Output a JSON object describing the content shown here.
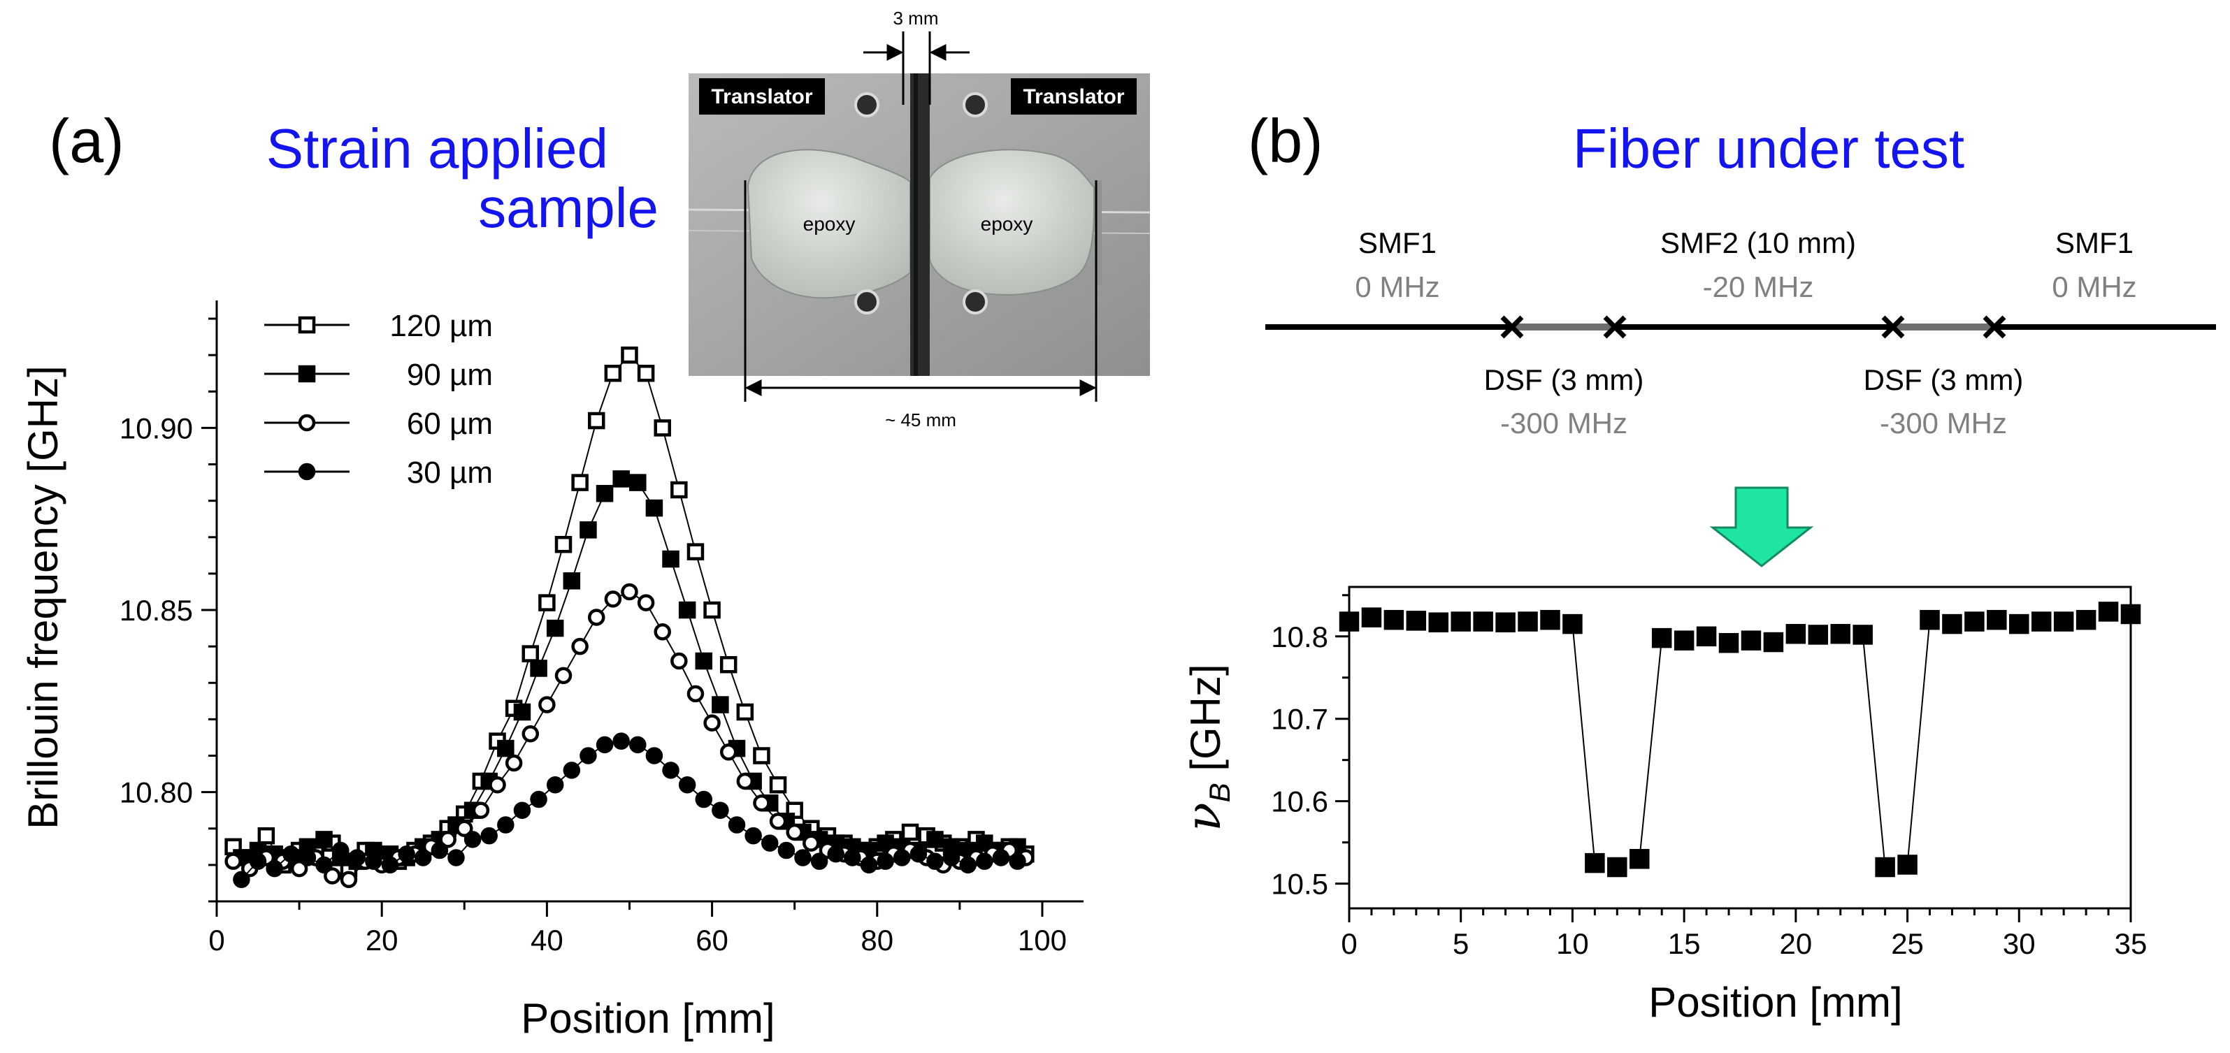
{
  "panels": {
    "a": {
      "letter": "(a)",
      "title_line1": "Strain applied",
      "title_line2": "sample",
      "photo": {
        "translator_left": "Translator",
        "translator_right": "Translator",
        "epoxy_left": "epoxy",
        "epoxy_right": "epoxy",
        "gap_label": "3 mm",
        "span_label": "~ 45 mm"
      }
    },
    "b": {
      "letter": "(b)",
      "title": "Fiber under test",
      "segments": [
        {
          "name": "SMF1",
          "shift": "0 MHz"
        },
        {
          "name": "DSF (3 mm)",
          "shift": "-300 MHz"
        },
        {
          "name": "SMF2 (10 mm)",
          "shift": "-20 MHz"
        },
        {
          "name": "DSF (3 mm)",
          "shift": "-300 MHz"
        },
        {
          "name": "SMF1",
          "shift": "0 MHz"
        }
      ]
    }
  },
  "colors": {
    "title_blue": "#1414f0",
    "arrow_fill": "#1ee6a0",
    "shift_gray": "#808080",
    "fiber_black": "#000000",
    "dsf_gray": "#6e6e6e"
  },
  "chart_data": [
    {
      "type": "scatter",
      "title": "",
      "xlabel": "Position [mm]",
      "ylabel": "Brillouin frequency [GHz]",
      "xlim": [
        0,
        105
      ],
      "ylim": [
        10.77,
        10.935
      ],
      "xticks": [
        "0",
        "20",
        "40",
        "60",
        "80",
        "100"
      ],
      "yticks": [
        "10.80",
        "10.85",
        "10.90"
      ],
      "series": [
        {
          "name": "120 µm",
          "marker": "open-square",
          "peak": 10.92,
          "center": 50,
          "width": 7.5,
          "x": [
            2,
            4,
            6,
            8,
            10,
            12,
            14,
            16,
            18,
            20,
            22,
            24,
            26,
            28,
            30,
            32,
            34,
            36,
            38,
            40,
            42,
            44,
            46,
            48,
            50,
            52,
            54,
            56,
            58,
            60,
            62,
            64,
            66,
            68,
            70,
            72,
            74,
            76,
            78,
            80,
            82,
            84,
            86,
            88,
            90,
            92,
            94,
            96,
            98
          ],
          "y": [
            10.785,
            10.782,
            10.788,
            10.78,
            10.784,
            10.783,
            10.786,
            10.779,
            10.784,
            10.782,
            10.781,
            10.784,
            10.786,
            10.79,
            10.794,
            10.803,
            10.814,
            10.823,
            10.838,
            10.852,
            10.868,
            10.885,
            10.902,
            10.915,
            10.92,
            10.915,
            10.9,
            10.883,
            10.866,
            10.85,
            10.835,
            10.822,
            10.81,
            10.802,
            10.795,
            10.79,
            10.788,
            10.786,
            10.784,
            10.785,
            10.787,
            10.789,
            10.788,
            10.786,
            10.785,
            10.787,
            10.784,
            10.785,
            10.783
          ]
        },
        {
          "name": "90 µm",
          "marker": "filled-square",
          "peak": 10.886,
          "center": 50,
          "width": 7.5,
          "x": [
            3,
            5,
            7,
            9,
            11,
            13,
            15,
            17,
            19,
            21,
            23,
            25,
            27,
            29,
            31,
            33,
            35,
            37,
            39,
            41,
            43,
            45,
            47,
            49,
            51,
            53,
            55,
            57,
            59,
            61,
            63,
            65,
            67,
            69,
            71,
            73,
            75,
            77,
            79,
            81,
            83,
            85,
            87,
            89,
            91,
            93,
            95,
            97
          ],
          "y": [
            10.782,
            10.784,
            10.783,
            10.782,
            10.785,
            10.787,
            10.782,
            10.781,
            10.784,
            10.783,
            10.782,
            10.785,
            10.787,
            10.791,
            10.795,
            10.803,
            10.812,
            10.822,
            10.834,
            10.845,
            10.858,
            10.872,
            10.882,
            10.886,
            10.885,
            10.878,
            10.864,
            10.85,
            10.836,
            10.824,
            10.812,
            10.803,
            10.797,
            10.792,
            10.789,
            10.787,
            10.786,
            10.785,
            10.784,
            10.786,
            10.785,
            10.784,
            10.787,
            10.785,
            10.784,
            10.786,
            10.784,
            10.785
          ]
        },
        {
          "name": "60 µm",
          "marker": "open-circle",
          "peak": 10.855,
          "center": 50,
          "width": 7.5,
          "x": [
            2,
            4,
            6,
            8,
            10,
            12,
            14,
            16,
            18,
            20,
            22,
            24,
            26,
            28,
            30,
            32,
            34,
            36,
            38,
            40,
            42,
            44,
            46,
            48,
            50,
            52,
            54,
            56,
            58,
            60,
            62,
            64,
            66,
            68,
            70,
            72,
            74,
            76,
            78,
            80,
            82,
            84,
            86,
            88,
            90,
            92,
            94,
            96,
            98
          ],
          "y": [
            10.781,
            10.779,
            10.782,
            10.781,
            10.779,
            10.782,
            10.777,
            10.776,
            10.781,
            10.78,
            10.782,
            10.783,
            10.785,
            10.787,
            10.79,
            10.795,
            10.802,
            10.808,
            10.816,
            10.824,
            10.832,
            10.84,
            10.848,
            10.853,
            10.855,
            10.852,
            10.844,
            10.836,
            10.827,
            10.819,
            10.811,
            10.803,
            10.797,
            10.792,
            10.789,
            10.786,
            10.784,
            10.783,
            10.782,
            10.781,
            10.783,
            10.784,
            10.782,
            10.78,
            10.781,
            10.782,
            10.783,
            10.784,
            10.782
          ]
        },
        {
          "name": "30 µm",
          "marker": "filled-circle",
          "peak": 10.814,
          "center": 50,
          "width": 7.5,
          "x": [
            3,
            5,
            7,
            9,
            11,
            13,
            15,
            17,
            19,
            21,
            23,
            25,
            27,
            29,
            31,
            33,
            35,
            37,
            39,
            41,
            43,
            45,
            47,
            49,
            51,
            53,
            55,
            57,
            59,
            61,
            63,
            65,
            67,
            69,
            71,
            73,
            75,
            77,
            79,
            81,
            83,
            85,
            87,
            89,
            91,
            93,
            95,
            97
          ],
          "y": [
            10.776,
            10.781,
            10.779,
            10.783,
            10.782,
            10.78,
            10.784,
            10.782,
            10.781,
            10.78,
            10.783,
            10.782,
            10.784,
            10.782,
            10.787,
            10.788,
            10.791,
            10.795,
            10.798,
            10.802,
            10.806,
            10.81,
            10.813,
            10.814,
            10.813,
            10.81,
            10.806,
            10.802,
            10.798,
            10.795,
            10.791,
            10.788,
            10.786,
            10.784,
            10.782,
            10.781,
            10.783,
            10.782,
            10.78,
            10.781,
            10.782,
            10.783,
            10.781,
            10.782,
            10.78,
            10.781,
            10.782,
            10.781
          ]
        }
      ]
    },
    {
      "type": "scatter",
      "title": "",
      "xlabel": "Position [mm]",
      "ylabel": "ν_B [GHz]",
      "ylabel_symbol": "ν",
      "ylabel_subscript": "B",
      "ylabel_unit": " [GHz]",
      "xlim": [
        0,
        35
      ],
      "ylim": [
        10.47,
        10.86
      ],
      "xticks": [
        "0",
        "5",
        "10",
        "15",
        "20",
        "25",
        "30",
        "35"
      ],
      "yticks": [
        "10.5",
        "10.6",
        "10.7",
        "10.8"
      ],
      "series": [
        {
          "name": "ν_B",
          "marker": "filled-square",
          "x": [
            0,
            1,
            2,
            3,
            4,
            5,
            6,
            7,
            8,
            9,
            10,
            11,
            12,
            13,
            14,
            15,
            16,
            17,
            18,
            19,
            20,
            21,
            22,
            23,
            24,
            25,
            26,
            27,
            28,
            29,
            30,
            31,
            32,
            33,
            34,
            35
          ],
          "y": [
            10.818,
            10.823,
            10.82,
            10.819,
            10.817,
            10.818,
            10.818,
            10.817,
            10.818,
            10.82,
            10.815,
            10.525,
            10.52,
            10.53,
            10.798,
            10.795,
            10.8,
            10.792,
            10.795,
            10.793,
            10.803,
            10.802,
            10.803,
            10.802,
            10.52,
            10.523,
            10.82,
            10.815,
            10.818,
            10.82,
            10.815,
            10.818,
            10.818,
            10.82,
            10.83,
            10.827
          ]
        }
      ]
    }
  ]
}
